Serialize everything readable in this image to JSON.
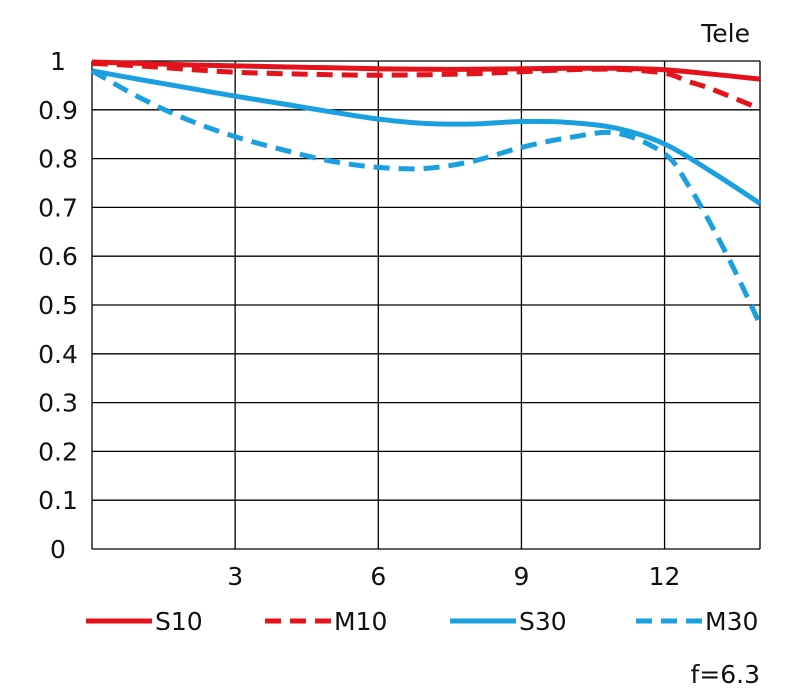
{
  "chart_data": {
    "type": "line",
    "title": "",
    "corner_label": "Tele",
    "footnote": "f=6.3",
    "xlabel": "",
    "ylabel": "",
    "xlim": [
      0,
      14
    ],
    "ylim": [
      0,
      1
    ],
    "x_ticks": [
      3,
      6,
      9,
      12
    ],
    "y_ticks": [
      0,
      0.1,
      0.2,
      0.3,
      0.4,
      0.5,
      0.6,
      0.7,
      0.8,
      0.9,
      1
    ],
    "y_tick_labels": [
      "0",
      "0.1",
      "0.2",
      "0.3",
      "0.4",
      "0.5",
      "0.6",
      "0.7",
      "0.8",
      "0.9",
      "1"
    ],
    "grid": true,
    "legend_position": "bottom",
    "series": [
      {
        "name": "S10",
        "color": "#e3121b",
        "dashed": false,
        "x": [
          0,
          1,
          2,
          3,
          4,
          5,
          6,
          7,
          8,
          9,
          10,
          11,
          12,
          13,
          14
        ],
        "y": [
          0.998,
          0.995,
          0.992,
          0.99,
          0.988,
          0.986,
          0.984,
          0.983,
          0.983,
          0.984,
          0.985,
          0.985,
          0.982,
          0.973,
          0.963
        ]
      },
      {
        "name": "M10",
        "color": "#e3121b",
        "dashed": true,
        "x": [
          0,
          1,
          2,
          3,
          4,
          5,
          6,
          7,
          8,
          9,
          10,
          11,
          12,
          12.5,
          13,
          14
        ],
        "y": [
          0.995,
          0.99,
          0.983,
          0.977,
          0.974,
          0.972,
          0.971,
          0.972,
          0.974,
          0.978,
          0.982,
          0.983,
          0.975,
          0.958,
          0.942,
          0.902
        ]
      },
      {
        "name": "S30",
        "color": "#1aa0e0",
        "dashed": false,
        "x": [
          0,
          1,
          2,
          3,
          4,
          5,
          6,
          7,
          8,
          9,
          10,
          11,
          12,
          13,
          14
        ],
        "y": [
          0.98,
          0.962,
          0.945,
          0.928,
          0.912,
          0.896,
          0.881,
          0.872,
          0.871,
          0.876,
          0.874,
          0.862,
          0.83,
          0.772,
          0.708
        ]
      },
      {
        "name": "M30",
        "color": "#1aa0e0",
        "dashed": true,
        "x": [
          0,
          1,
          2,
          3,
          4,
          5,
          6,
          7,
          8,
          9,
          10,
          11,
          12,
          12.5,
          13,
          13.5,
          14
        ],
        "y": [
          0.98,
          0.925,
          0.88,
          0.845,
          0.818,
          0.795,
          0.782,
          0.78,
          0.795,
          0.823,
          0.843,
          0.852,
          0.81,
          0.745,
          0.66,
          0.565,
          0.46
        ]
      }
    ]
  }
}
